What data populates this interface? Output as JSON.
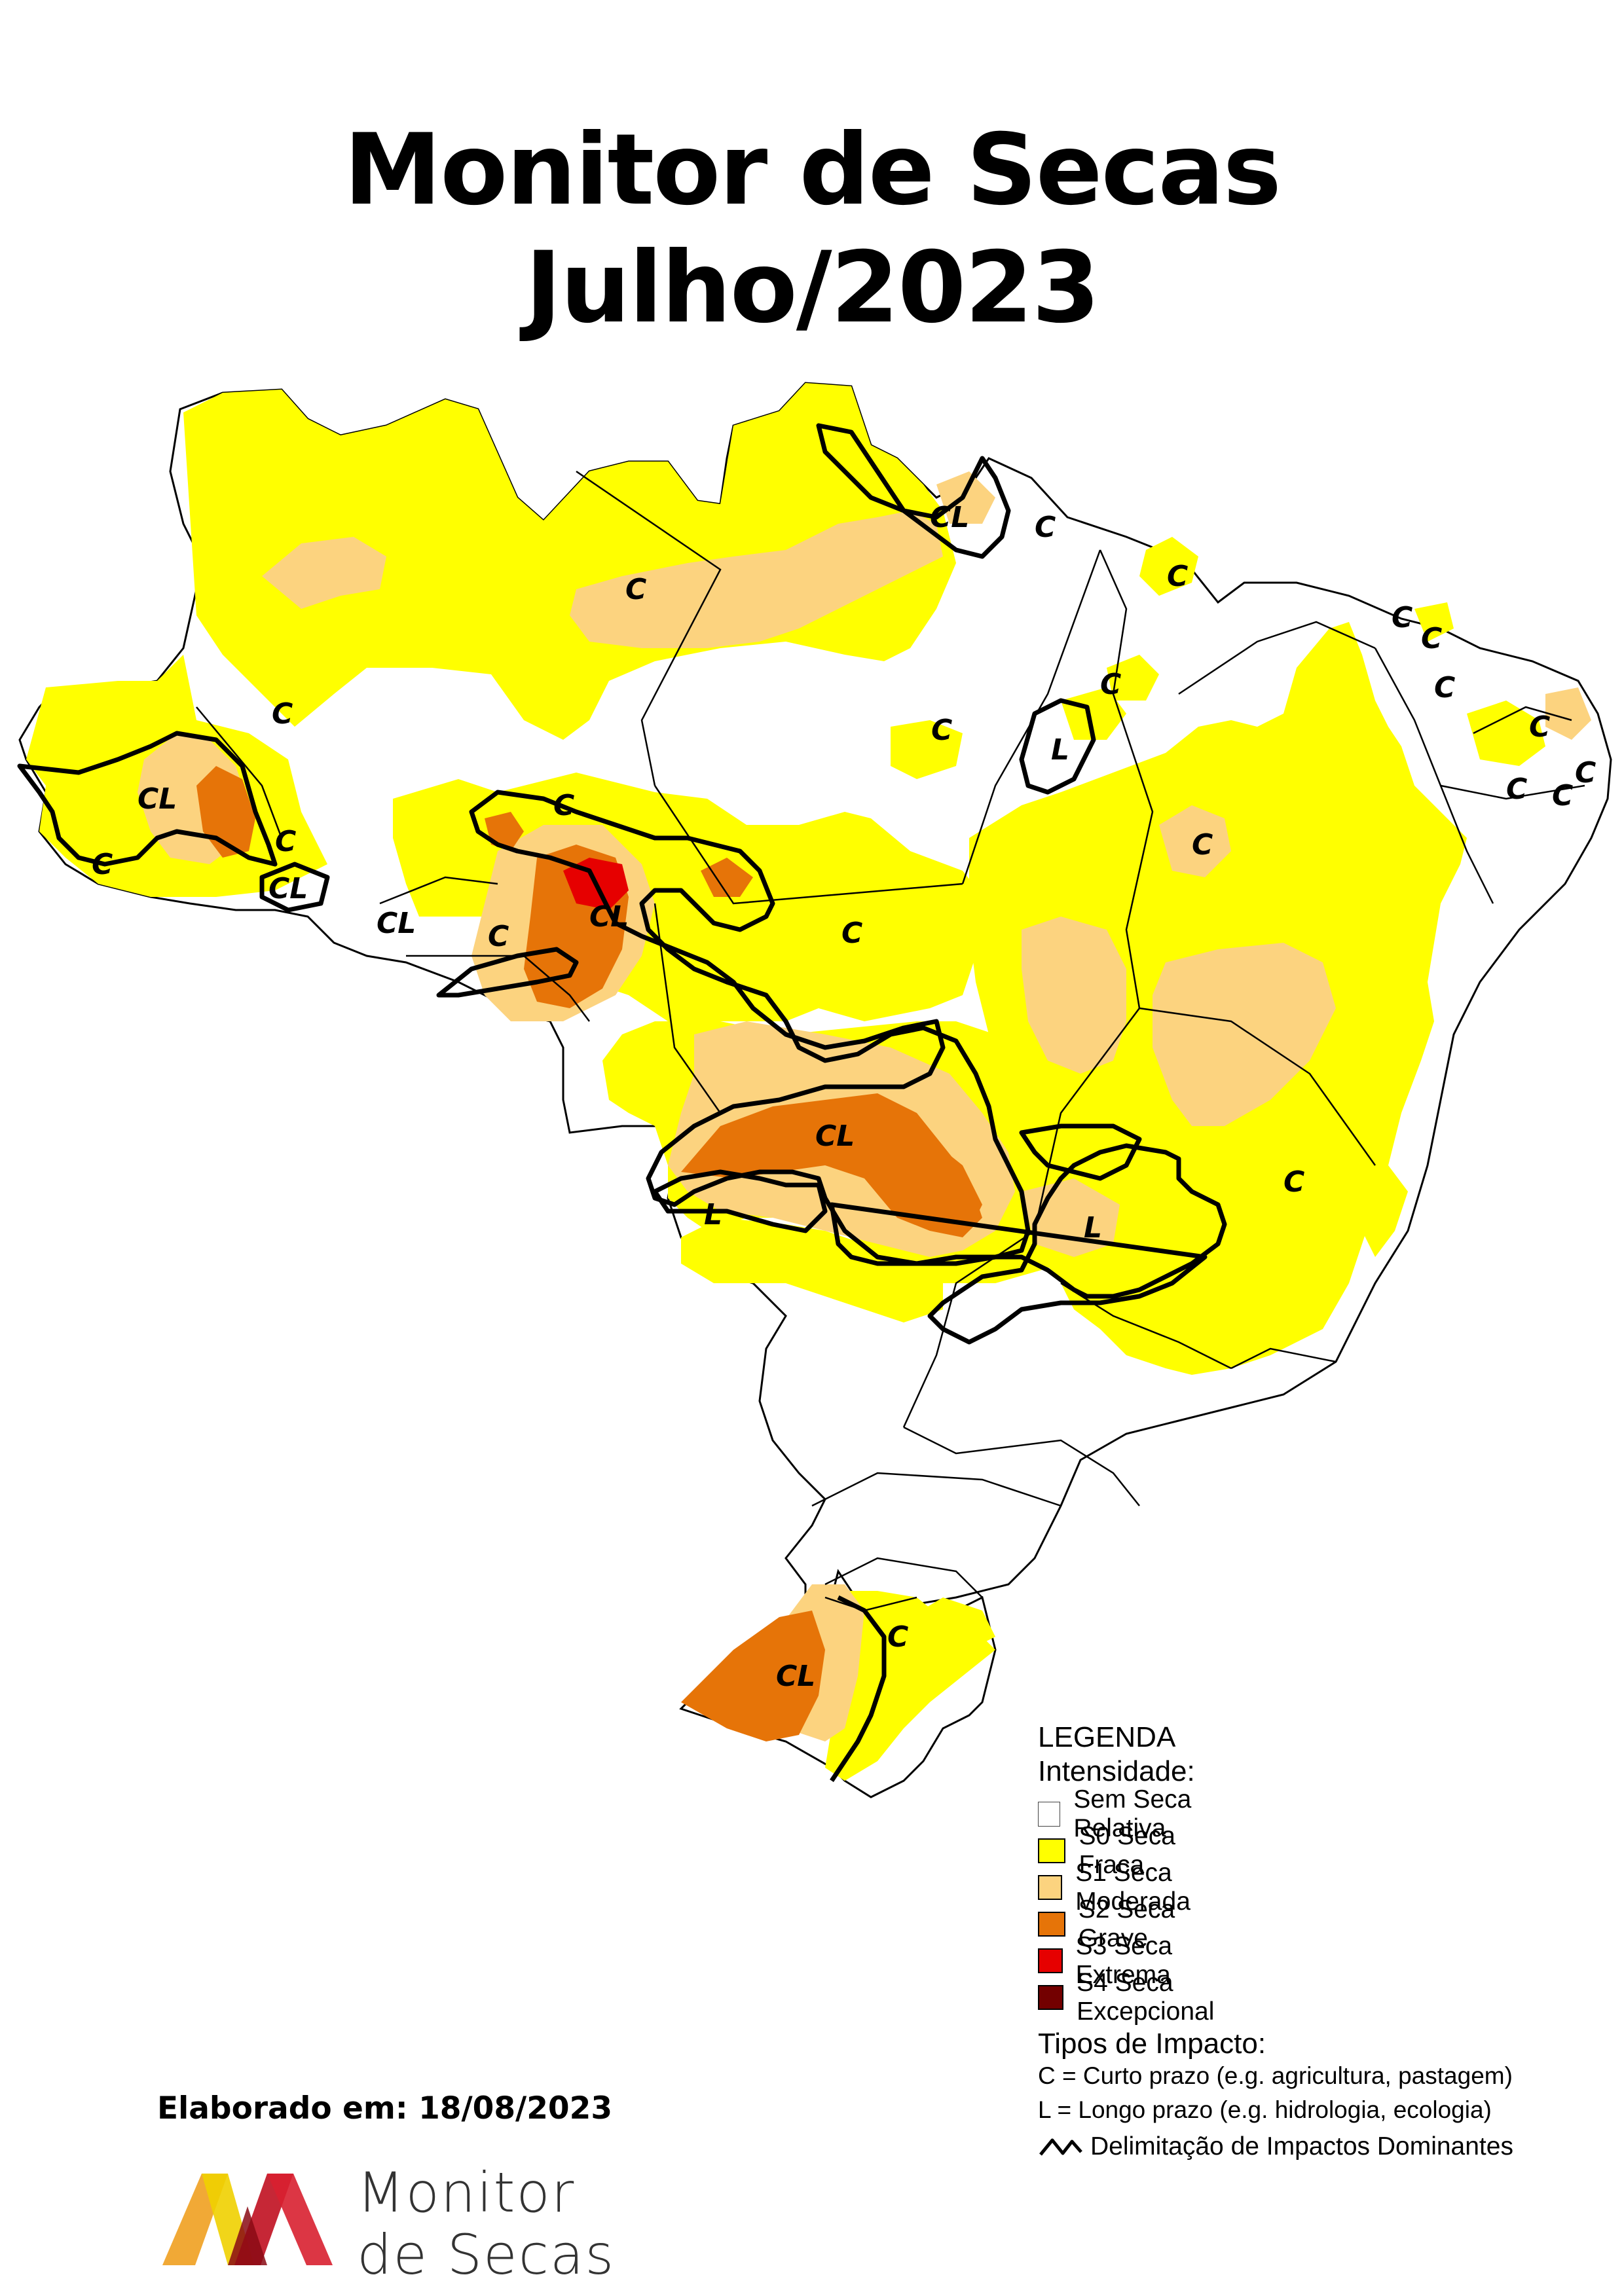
{
  "title": {
    "line1": "Monitor de Secas",
    "line2": "Julho/2023"
  },
  "legend": {
    "heading": "LEGENDA",
    "intensity_heading": "Intensidade:",
    "intensity_items": [
      {
        "label": "Sem Seca Relativa",
        "color": "#ffffff"
      },
      {
        "label": "S0 Seca Fraca",
        "color": "#ffff00"
      },
      {
        "label": "S1 Seca Moderada",
        "color": "#fcd37f"
      },
      {
        "label": "S2 Seca Grave",
        "color": "#e67408"
      },
      {
        "label": "S3 Seca Extrema",
        "color": "#e60000"
      },
      {
        "label": "S4 Seca Excepcional",
        "color": "#730000"
      }
    ],
    "impact_heading": "Tipos de Impacto:",
    "impact_short": "C = Curto prazo (e.g. agricultura, pastagem)",
    "impact_long": "L = Longo prazo (e.g. hidrologia, ecologia)",
    "delimitation": "Delimitação de Impactos Dominantes"
  },
  "map_labels": {
    "C": "C",
    "CL": "CL",
    "L": "L"
  },
  "footer": {
    "elaborado": "Elaborado em: 18/08/2023",
    "logo_line1": "Monitor",
    "logo_line2": "de Secas"
  }
}
